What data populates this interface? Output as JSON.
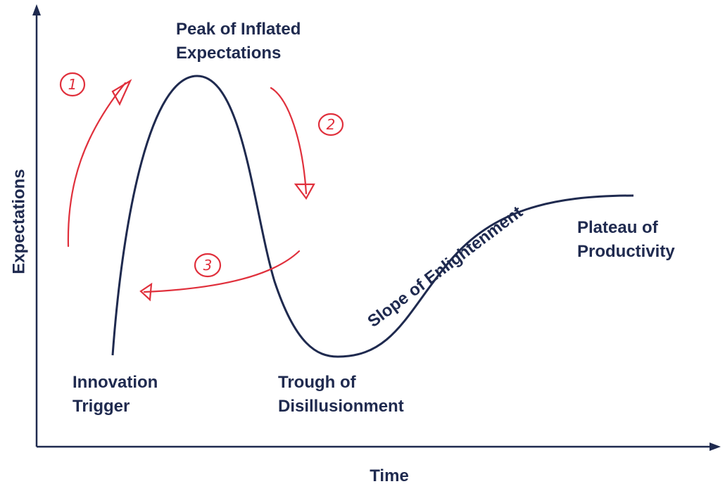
{
  "axes": {
    "y_label": "Expectations",
    "x_label": "Time"
  },
  "phases": [
    {
      "lines": [
        "Innovation",
        "Trigger"
      ]
    },
    {
      "lines": [
        "Peak of Inflated",
        "Expectations"
      ]
    },
    {
      "lines": [
        "Trough of",
        "Disillusionment"
      ]
    },
    {
      "lines": [
        "Slope of Enlightenment"
      ]
    },
    {
      "lines": [
        "Plateau of",
        "Productivity"
      ]
    }
  ],
  "annotations": [
    "1",
    "2",
    "3"
  ]
}
